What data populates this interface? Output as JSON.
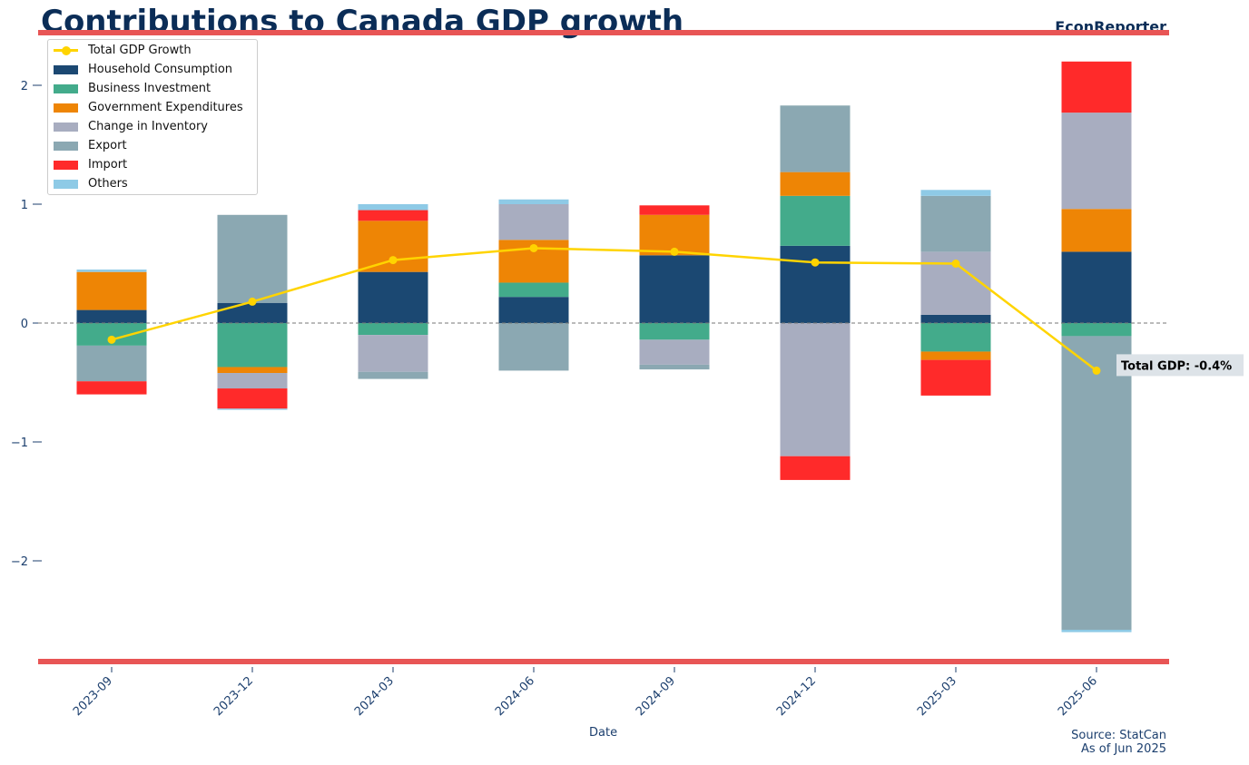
{
  "title": "Contributions to Canada GDP growth",
  "brand": "EconReporter",
  "source_line1": "Source: StatCan",
  "source_line2": "As of Jun 2025",
  "chart_data": {
    "type": "bar",
    "stacked": true,
    "title": "Contributions to Canada GDP growth",
    "xlabel": "Date",
    "ylabel": "",
    "ylim": [
      -2.85,
      2.45
    ],
    "yticks": [
      -2,
      -1,
      0,
      1,
      2
    ],
    "grid": false,
    "legend_position": "top-left",
    "categories": [
      "2023-09",
      "2023-12",
      "2024-03",
      "2024-06",
      "2024-09",
      "2024-12",
      "2025-03",
      "2025-06"
    ],
    "series": [
      {
        "name": "Household Consumption",
        "color": "#1b4872",
        "values": [
          0.11,
          0.17,
          0.43,
          0.22,
          0.57,
          0.65,
          0.07,
          0.6
        ]
      },
      {
        "name": "Business Investment",
        "color": "#43ab8b",
        "values": [
          -0.19,
          -0.37,
          -0.1,
          0.12,
          -0.14,
          0.42,
          -0.24,
          -0.11
        ]
      },
      {
        "name": "Government Expenditures",
        "color": "#ee8505",
        "values": [
          0.32,
          -0.05,
          0.43,
          0.36,
          0.34,
          0.2,
          -0.07,
          0.36
        ]
      },
      {
        "name": "Change in Inventory",
        "color": "#a8adc0",
        "values": [
          0.0,
          -0.13,
          -0.31,
          0.3,
          -0.21,
          -1.12,
          0.53,
          0.81
        ]
      },
      {
        "name": "Export",
        "color": "#8ba8b2",
        "values": [
          -0.3,
          0.74,
          -0.06,
          -0.4,
          -0.04,
          0.56,
          0.47,
          -2.47
        ]
      },
      {
        "name": "Import",
        "color": "#ff2a2a",
        "values": [
          -0.11,
          -0.17,
          0.09,
          0.0,
          0.08,
          -0.2,
          -0.3,
          0.43
        ]
      },
      {
        "name": "Others",
        "color": "#8ecae6",
        "values": [
          0.02,
          -0.01,
          0.05,
          0.04,
          0.0,
          0.0,
          0.05,
          -0.02
        ]
      }
    ],
    "line": {
      "name": "Total GDP Growth",
      "color": "#ffd400",
      "values": [
        -0.14,
        0.18,
        0.53,
        0.63,
        0.6,
        0.51,
        0.5,
        -0.4
      ]
    },
    "annotation": "Total GDP: -0.4%"
  }
}
